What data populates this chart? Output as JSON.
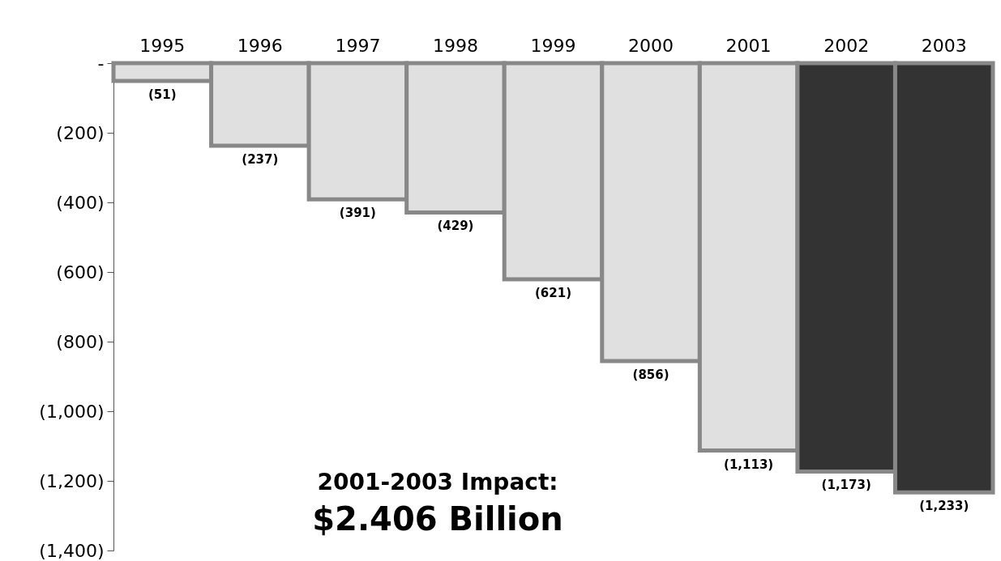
{
  "chart_data": {
    "type": "bar",
    "categories": [
      "1995",
      "1996",
      "1997",
      "1998",
      "1999",
      "2000",
      "2001",
      "2002",
      "2003"
    ],
    "values": [
      -51,
      -237,
      -391,
      -429,
      -621,
      -856,
      -1113,
      -1173,
      -1233
    ],
    "colors": [
      "#e0e0e0",
      "#e0e0e0",
      "#e0e0e0",
      "#e0e0e0",
      "#e0e0e0",
      "#e0e0e0",
      "#e0e0e0",
      "#333333",
      "#333333"
    ],
    "value_labels": [
      "(51)",
      "(237)",
      "(391)",
      "(429)",
      "(621)",
      "(856)",
      "(1,113)",
      "(1,173)",
      "(1,233)"
    ],
    "ylim": [
      -1400,
      0
    ],
    "yticks": [
      {
        "value": 0,
        "label": "-"
      },
      {
        "value": -200,
        "label": "(200)"
      },
      {
        "value": -400,
        "label": "(400)"
      },
      {
        "value": -600,
        "label": "(600)"
      },
      {
        "value": -800,
        "label": "(800)"
      },
      {
        "value": -1000,
        "label": "(1,000)"
      },
      {
        "value": -1200,
        "label": "(1,200)"
      },
      {
        "value": -1400,
        "label": "(1,400)"
      }
    ],
    "annotations": [
      "2001-2003 Impact:",
      "$2.406 Billion"
    ]
  }
}
